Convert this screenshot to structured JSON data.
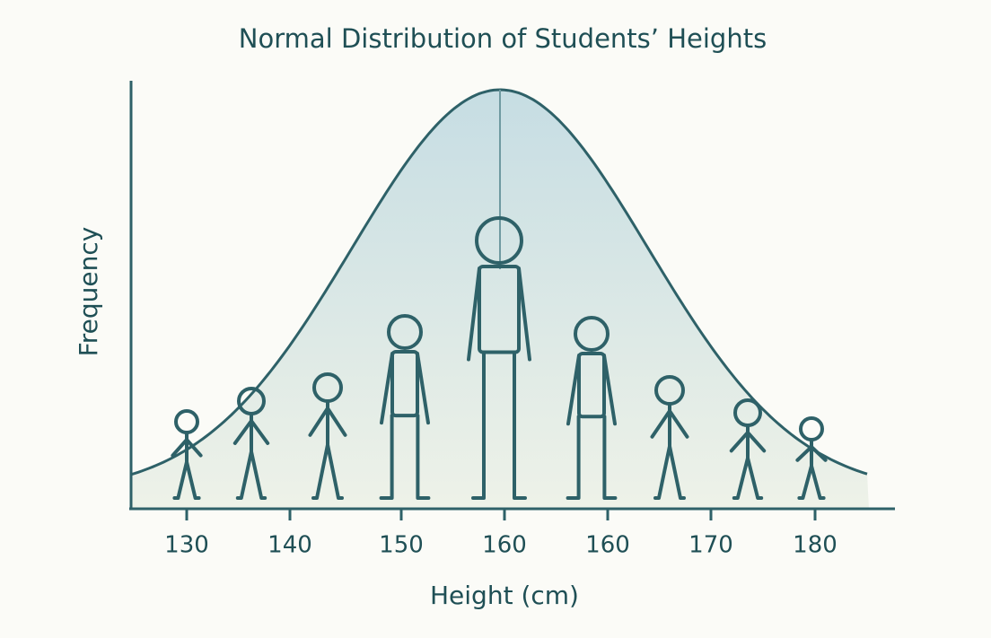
{
  "chart_data": {
    "type": "illustration",
    "title": "Normal Distribution of Students’ Heights",
    "x_label": "Height (cm)",
    "y_label": "Frequency",
    "categories": [
      "130",
      "140",
      "150",
      "160",
      "160",
      "170",
      "180"
    ]
  }
}
